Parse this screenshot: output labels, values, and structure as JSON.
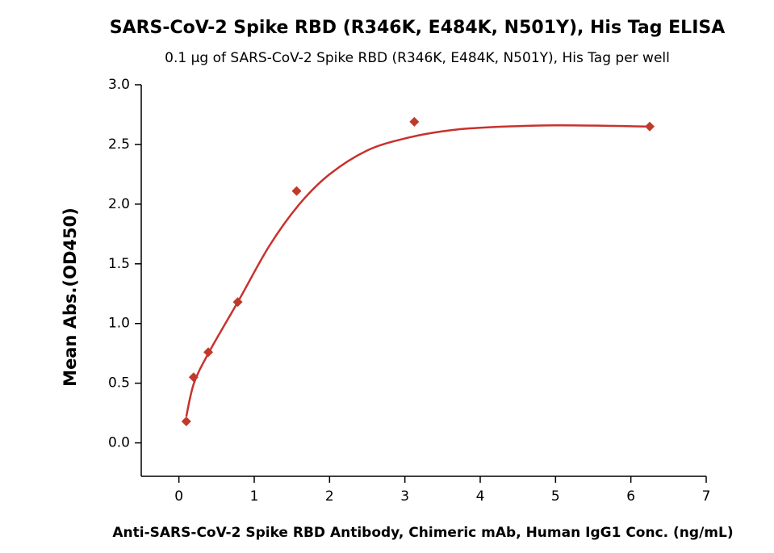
{
  "chart_data": {
    "type": "scatter",
    "title": "SARS-CoV-2 Spike RBD (R346K, E484K, N501Y), His Tag ELISA",
    "subtitle": "0.1 μg of SARS-CoV-2 Spike RBD (R346K, E484K, N501Y), His Tag per well",
    "x_label": "Anti-SARS-CoV-2 Spike RBD Antibody, Chimeric mAb, Human IgG1 Conc. (ng/mL)",
    "y_label": "Mean Abs.(OD450)",
    "x": [
      0.098,
      0.195,
      0.39,
      0.781,
      1.5625,
      3.125,
      6.25
    ],
    "values": [
      0.18,
      0.55,
      0.76,
      1.18,
      2.11,
      2.69,
      2.65
    ],
    "color": "#c0392b",
    "fit": {
      "color": "#c8322e",
      "x": [
        0.098,
        0.2,
        0.4,
        0.8,
        1.2,
        1.6,
        2,
        2.5,
        3,
        3.5,
        4,
        5,
        6.25
      ],
      "values": [
        0.22,
        0.5,
        0.76,
        1.2,
        1.65,
        2.0,
        2.25,
        2.45,
        2.55,
        2.61,
        2.64,
        2.66,
        2.65
      ]
    },
    "xlim": [
      -0.5,
      7
    ],
    "ylim": [
      -0.28,
      3.0
    ],
    "xticks": [
      0,
      1,
      2,
      3,
      4,
      5,
      6,
      7
    ],
    "yticks": [
      {
        "value": 0,
        "label": "0.0"
      },
      0.5,
      {
        "value": 1,
        "label": "1.0"
      },
      1.5,
      {
        "value": 2,
        "label": "2.0"
      },
      2.5,
      {
        "value": 3,
        "label": "3.0"
      }
    ]
  }
}
